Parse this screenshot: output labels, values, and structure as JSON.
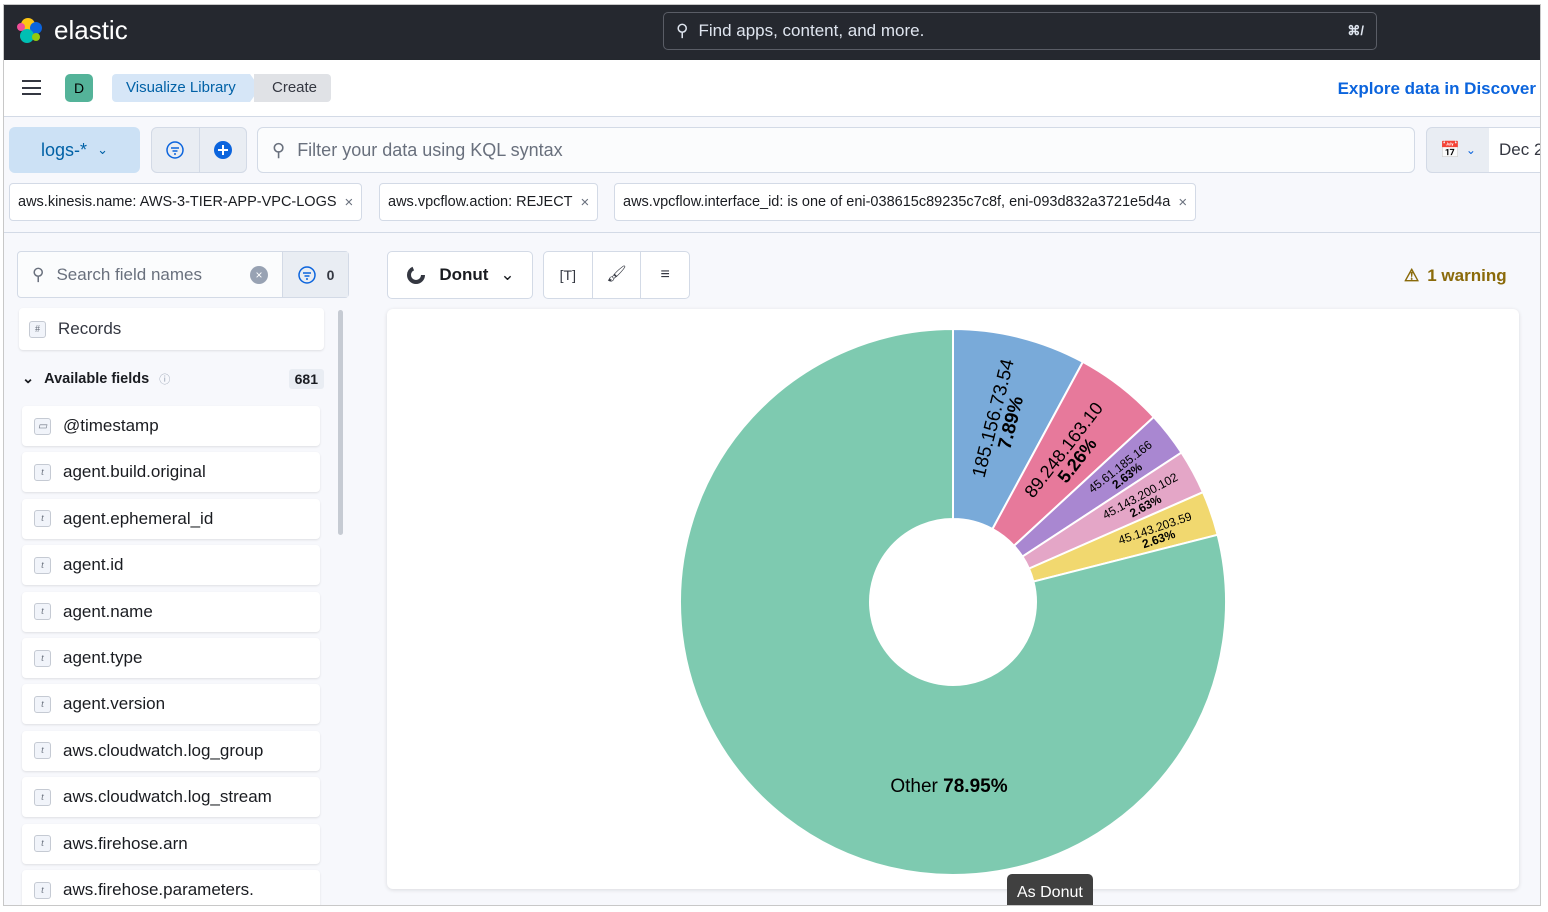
{
  "topbar": {
    "brand": "elastic",
    "search_placeholder": "Find apps, content, and more.",
    "search_shortcut": "⌘/"
  },
  "header": {
    "avatar": "D",
    "breadcrumbs": [
      "Visualize Library",
      "Create"
    ],
    "explore_link": "Explore data in Discover"
  },
  "query": {
    "data_view": "logs-*",
    "kql_placeholder": "Filter your data using KQL syntax",
    "date": "Dec 2"
  },
  "filters": [
    "aws.kinesis.name: AWS-3-TIER-APP-VPC-LOGS",
    "aws.vpcflow.action: REJECT",
    "aws.vpcflow.interface_id: is one of eni-038615c89235c7c8f, eni-093d832a3721e5d4a"
  ],
  "sidebar": {
    "search_placeholder": "Search field names",
    "filter_count": "0",
    "records": "Records",
    "available_label": "Available fields",
    "available_count": "681",
    "fields": [
      "@timestamp",
      "agent.build.original",
      "agent.ephemeral_id",
      "agent.id",
      "agent.name",
      "agent.type",
      "agent.version",
      "aws.cloudwatch.log_group",
      "aws.cloudwatch.log_stream",
      "aws.firehose.arn",
      "aws.firehose.parameters."
    ]
  },
  "toolbar": {
    "chart_type": "Donut",
    "warning": "1 warning"
  },
  "tooltip": "As Donut",
  "chart_data": {
    "type": "pie",
    "donut": true,
    "slices": [
      {
        "label": "185.156.73.54",
        "value": 7.89,
        "color": "#79aad9"
      },
      {
        "label": "89.248.163.10",
        "value": 5.26,
        "color": "#e7799b"
      },
      {
        "label": "45.61.185.166",
        "value": 2.63,
        "color": "#a987d1"
      },
      {
        "label": "45.143.200.102",
        "value": 2.63,
        "color": "#e4a6c7"
      },
      {
        "label": "45.143.203.59",
        "value": 2.63,
        "color": "#f1d86f"
      },
      {
        "label": "Other",
        "value": 78.95,
        "color": "#7ecab0"
      }
    ]
  }
}
